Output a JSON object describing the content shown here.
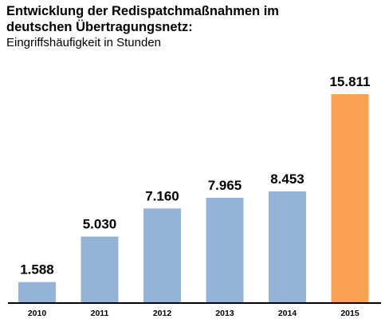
{
  "title_line1": "Entwicklung der Redispatchmaßnahmen im",
  "title_line2": "deutschen Übertragungsnetz:",
  "subtitle": "Eingriffshäufigkeit in Stunden",
  "colors": {
    "default_bar": "#95B3D7",
    "highlight_bar": "#F9A252",
    "axis": "#000000"
  },
  "chart_data": {
    "type": "bar",
    "title": "Entwicklung der Redispatchmaßnahmen im deutschen Übertragungsnetz:",
    "subtitle": "Eingriffshäufigkeit in Stunden",
    "categories": [
      "2010",
      "2011",
      "2012",
      "2013",
      "2014",
      "2015"
    ],
    "values": [
      1588,
      5030,
      7160,
      7965,
      8453,
      15811
    ],
    "value_labels": [
      "1.588",
      "5.030",
      "7.160",
      "7.965",
      "8.453",
      "15.811"
    ],
    "highlight_index": 5,
    "xlabel": "",
    "ylabel": "",
    "ylim": [
      0,
      15811
    ],
    "grid": false,
    "legend": "none"
  }
}
